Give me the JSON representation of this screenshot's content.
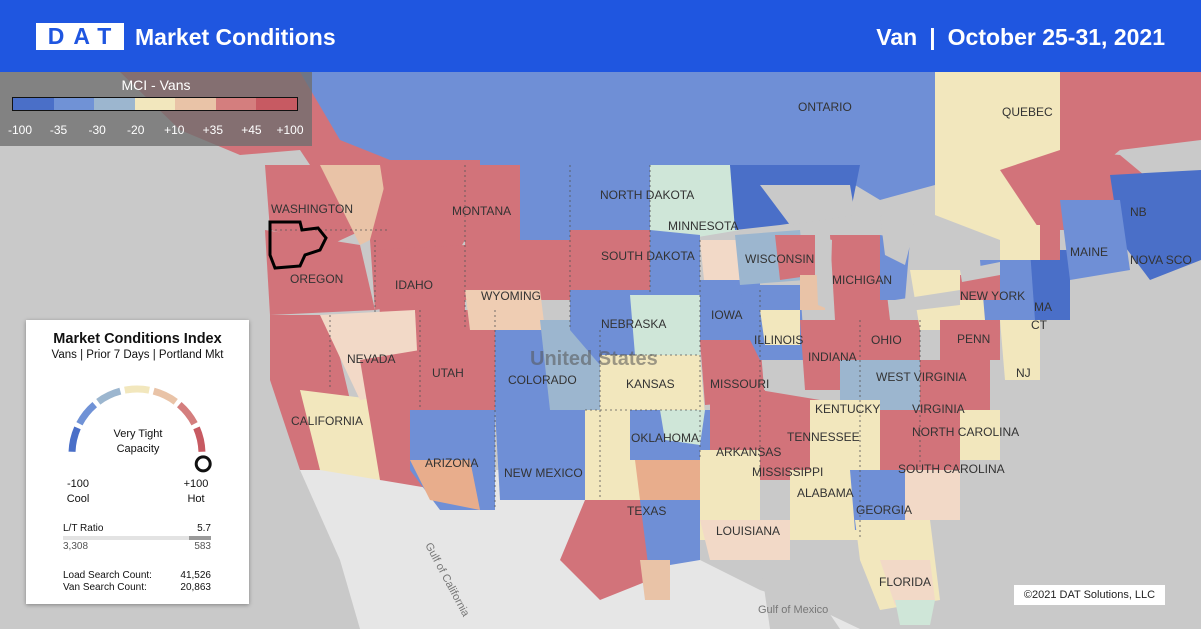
{
  "header": {
    "logo": "DAT",
    "title": "Market Conditions",
    "equipment": "Van",
    "separator": "|",
    "date_range": "October 25-31, 2021"
  },
  "legend": {
    "title": "MCI - Vans",
    "ticks": [
      "-100",
      "-35",
      "-30",
      "-20",
      "+10",
      "+35",
      "+45",
      "+100"
    ],
    "colors": [
      "#4a6fc8",
      "#7092d6",
      "#9cb6cf",
      "#f2e7bd",
      "#e9c3a7",
      "#d47e7e",
      "#c75a62"
    ]
  },
  "map": {
    "country_label": "United States",
    "place_labels": [
      "ONTARIO",
      "QUEBEC",
      "NORTH DAKOTA",
      "MINNESOTA",
      "WASHINGTON",
      "MONTANA",
      "OREGON",
      "IDAHO",
      "SOUTH DAKOTA",
      "WISCONSIN",
      "MICHIGAN",
      "NEW YORK",
      "MAINE",
      "NB",
      "NOVA SCO",
      "WYOMING",
      "NEBRASKA",
      "IOWA",
      "ILLINOIS",
      "INDIANA",
      "OHIO",
      "PENN",
      "NJ",
      "MA",
      "CT",
      "NEVADA",
      "UTAH",
      "COLORADO",
      "KANSAS",
      "MISSOURI",
      "KENTUCKY",
      "WEST VIRGINIA",
      "VIRGINIA",
      "CALIFORNIA",
      "ARIZONA",
      "NEW MEXICO",
      "OKLAHOMA",
      "ARKANSAS",
      "TENNESSEE",
      "NORTH CAROLINA",
      "SOUTH CAROLINA",
      "MISSISSIPPI",
      "ALABAMA",
      "GEORGIA",
      "TEXAS",
      "LOUISIANA",
      "FLORIDA",
      "Gulf of California",
      "Gulf of Mexico"
    ],
    "selected_market": "Portland",
    "colors": {
      "hot": "#d2737a",
      "warm": "#e9c3a7",
      "neutral": "#f2e7bd",
      "mild": "#cfe6d8",
      "light_cool": "#9cb6cf",
      "cool": "#6f8fd6",
      "cold": "#4a6fc8",
      "water": "#c9c9c9",
      "land_other": "#e6e6e6"
    }
  },
  "index_card": {
    "title": "Market Conditions Index",
    "subtitle": "Vans | Prior 7 Days | Portland Mkt",
    "gauge_status": "Very Tight Capacity",
    "gauge_min_value": "-100",
    "gauge_min_label": "Cool",
    "gauge_max_value": "+100",
    "gauge_max_label": "Hot",
    "gauge_level": 0.95,
    "lt_ratio_label": "L/T Ratio",
    "lt_ratio_value": "5.7",
    "lt_loads": "3,308",
    "lt_trucks": "583",
    "load_search_label": "Load Search Count:",
    "load_search_value": "41,526",
    "van_search_label": "Van Search Count:",
    "van_search_value": "20,863"
  },
  "copyright": "©2021 DAT Solutions, LLC"
}
